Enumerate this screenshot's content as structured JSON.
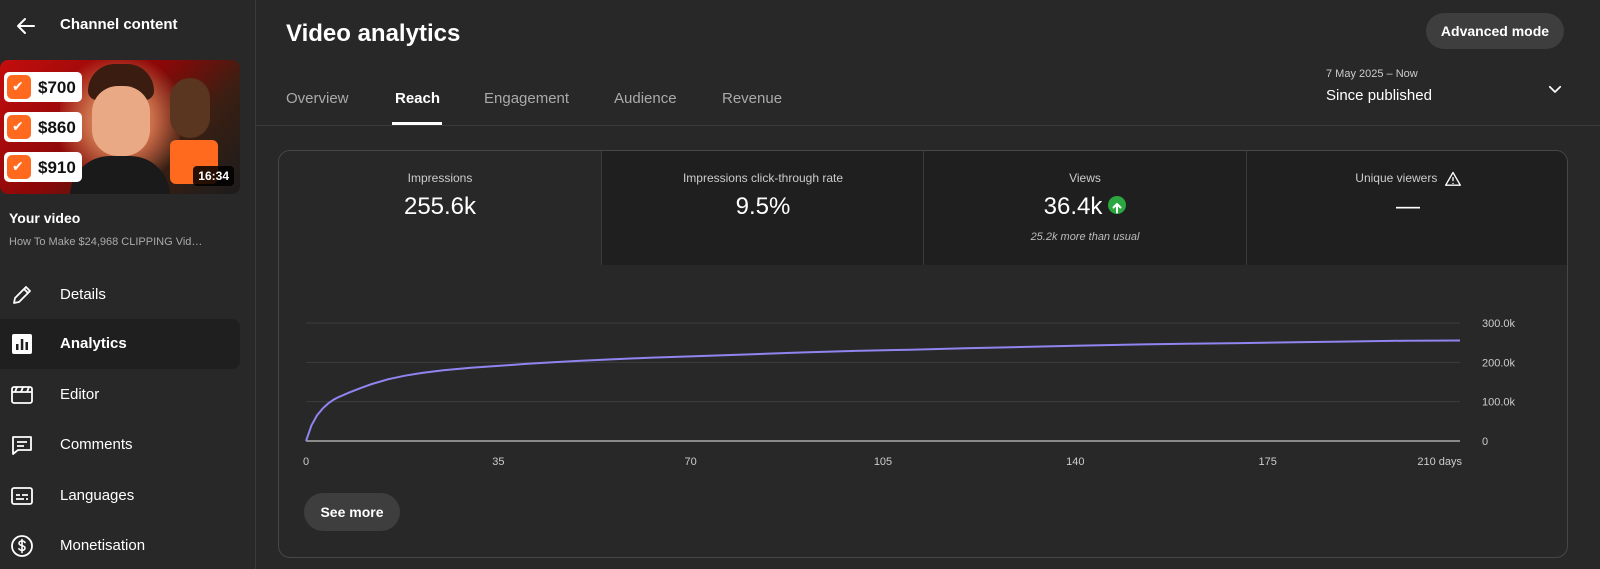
{
  "sidebar": {
    "title": "Channel content",
    "thumbnail": {
      "duration": "16:34",
      "prices": [
        "$700",
        "$860",
        "$910"
      ]
    },
    "your_video_label": "Your video",
    "video_title": "How To Make $24,968 CLIPPING Vid…",
    "nav": [
      {
        "label": "Details",
        "icon": "pencil-icon"
      },
      {
        "label": "Analytics",
        "icon": "analytics-icon",
        "active": true
      },
      {
        "label": "Editor",
        "icon": "clapperboard-icon"
      },
      {
        "label": "Comments",
        "icon": "comment-icon"
      },
      {
        "label": "Languages",
        "icon": "subtitles-icon"
      },
      {
        "label": "Monetisation",
        "icon": "dollar-icon"
      }
    ]
  },
  "header": {
    "title": "Video analytics",
    "advanced_mode": "Advanced mode"
  },
  "tabs": [
    {
      "label": "Overview"
    },
    {
      "label": "Reach",
      "active": true
    },
    {
      "label": "Engagement"
    },
    {
      "label": "Audience"
    },
    {
      "label": "Revenue"
    }
  ],
  "date": {
    "range": "7 May 2025 – Now",
    "label": "Since published"
  },
  "metrics": [
    {
      "label": "Impressions",
      "value": "255.6k",
      "sub": ""
    },
    {
      "label": "Impressions click-through rate",
      "value": "9.5%",
      "sub": ""
    },
    {
      "label": "Views",
      "value": "36.4k",
      "sub": "25.2k more than usual"
    },
    {
      "label": "Unique viewers",
      "value": "—",
      "sub": ""
    }
  ],
  "colors": {
    "line": "#8f84f0",
    "positive": "#2ba640"
  },
  "chart_data": {
    "type": "line",
    "title": "",
    "xlabel": "",
    "ylabel": "",
    "x_ticks": [
      "0",
      "35",
      "70",
      "105",
      "140",
      "175",
      "210 days"
    ],
    "y_ticks": [
      "0",
      "100.0k",
      "200.0k",
      "300.0k"
    ],
    "xlim": [
      0,
      210
    ],
    "ylim": [
      0,
      300000
    ],
    "series": [
      {
        "x": [
          0,
          1,
          2,
          3,
          4,
          5,
          6,
          8,
          10,
          12,
          15,
          18,
          21,
          25,
          30,
          35,
          40,
          45,
          50,
          56,
          63,
          70,
          80,
          90,
          100,
          110,
          120,
          130,
          140,
          150,
          160,
          170,
          180,
          190,
          200,
          210
        ],
        "values": [
          0,
          40000,
          65000,
          82000,
          95000,
          105000,
          112000,
          124000,
          135000,
          145000,
          157000,
          166000,
          173000,
          180000,
          186000,
          191000,
          196000,
          200000,
          204000,
          208000,
          212000,
          215000,
          220000,
          225000,
          229000,
          232000,
          236000,
          239000,
          242000,
          245000,
          247000,
          249000,
          251000,
          253000,
          255000,
          255600
        ]
      }
    ]
  },
  "see_more": "See more"
}
